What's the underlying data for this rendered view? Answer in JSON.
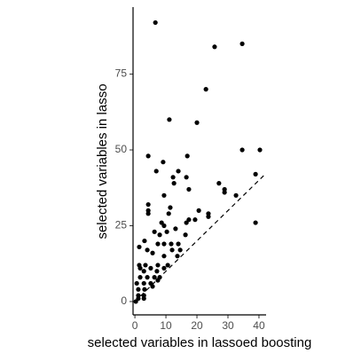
{
  "chart_data": {
    "type": "scatter",
    "x_label": "selected variables in lassoed boosting",
    "y_label": "selected variables in lasso",
    "xlim": [
      -0.6,
      42.3
    ],
    "ylim": [
      -4.4,
      97.1
    ],
    "xticks": [
      0,
      10,
      20,
      30,
      40
    ],
    "yticks": [
      0,
      25,
      50,
      75
    ],
    "grid": false,
    "color": "#000000",
    "reference_line": {
      "slope": 1,
      "intercept": 0,
      "dash": true
    },
    "x": [
      6.6,
      25.7,
      34.6,
      22.9,
      11.1,
      20,
      4.3,
      16.9,
      9.1,
      34.6,
      40.3,
      6.9,
      14,
      12.3,
      38.9,
      16.6,
      27.1,
      12.6,
      28.9,
      28.9,
      32.6,
      9.4,
      17.4,
      4.3,
      4.3,
      4.3,
      11.4,
      10.9,
      20.6,
      23.7,
      23.7,
      8.6,
      17.4,
      19.4,
      13.1,
      9.4,
      10.3,
      6.3,
      8,
      16.3,
      16.6,
      38.9,
      3.1,
      7.4,
      9.4,
      11.7,
      14,
      1.4,
      4,
      5.7,
      12,
      14.6,
      9.4,
      13.7,
      1.4,
      3.4,
      7.4,
      10.6,
      1.7,
      5.1,
      2.9,
      7.1,
      9.4,
      1.7,
      4,
      6.3,
      8,
      0.6,
      2.9,
      5.1,
      7.4,
      1.1,
      3.1,
      5.7,
      1.1,
      2.9,
      1.1,
      2.9,
      0.3
    ],
    "values": [
      92,
      84,
      85,
      70,
      60,
      59,
      48,
      48,
      46,
      50,
      50,
      43,
      43,
      41,
      42,
      41,
      39,
      39,
      37,
      36,
      35,
      35,
      37,
      32,
      30,
      29,
      31,
      29,
      30,
      29,
      28,
      26,
      27,
      27,
      24,
      25,
      23,
      23,
      22,
      22,
      26,
      26,
      20,
      19,
      19,
      19,
      19,
      18,
      17,
      16,
      17,
      17,
      15,
      15,
      12,
      12,
      12,
      12,
      11,
      11,
      10,
      10,
      11,
      8,
      8,
      8,
      8,
      6,
      6,
      6,
      7,
      4,
      4,
      5,
      2,
      2,
      1,
      1,
      0
    ]
  }
}
